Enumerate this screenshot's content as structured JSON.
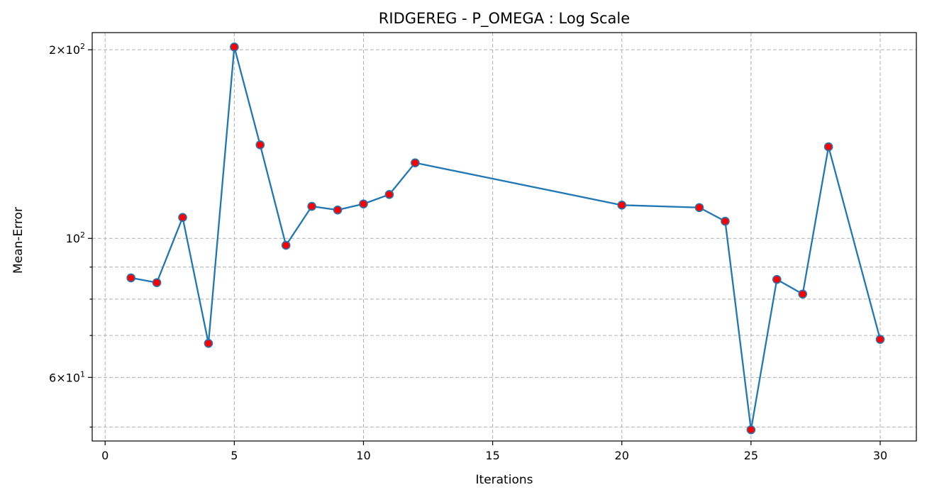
{
  "chart_data": {
    "type": "line",
    "title": "RIDGEREG - P_OMEGA : Log Scale",
    "xlabel": "Iterations",
    "ylabel": "Mean-Error",
    "yscale": "log",
    "xlim": [
      -0.5,
      31.4
    ],
    "ylim": [
      47.5,
      213
    ],
    "xticks": [
      0,
      5,
      10,
      15,
      20,
      25,
      30
    ],
    "xtick_labels": [
      "0",
      "5",
      "10",
      "15",
      "20",
      "25",
      "30"
    ],
    "yticks_major": [
      60,
      100,
      200
    ],
    "ytick_labels": [
      {
        "mantissa": "6",
        "exponent": "1"
      },
      {
        "mantissa": "",
        "exponent": "2"
      },
      {
        "mantissa": "2",
        "exponent": "2"
      }
    ],
    "yticks_minor": [
      50,
      70,
      80,
      90
    ],
    "grid": true,
    "series": [
      {
        "line_color": "#1f77b4",
        "marker_color": "#ff0000",
        "x": [
          1,
          2,
          3,
          4,
          5,
          6,
          7,
          8,
          9,
          10,
          11,
          12,
          20,
          23,
          24,
          25,
          26,
          27,
          28,
          30
        ],
        "y": [
          86.5,
          85.0,
          108.0,
          68.0,
          202.0,
          141.0,
          97.5,
          112.5,
          111.0,
          113.5,
          117.5,
          132.0,
          113.0,
          112.0,
          106.5,
          49.5,
          86.0,
          81.5,
          140.0,
          69.0
        ]
      }
    ]
  }
}
